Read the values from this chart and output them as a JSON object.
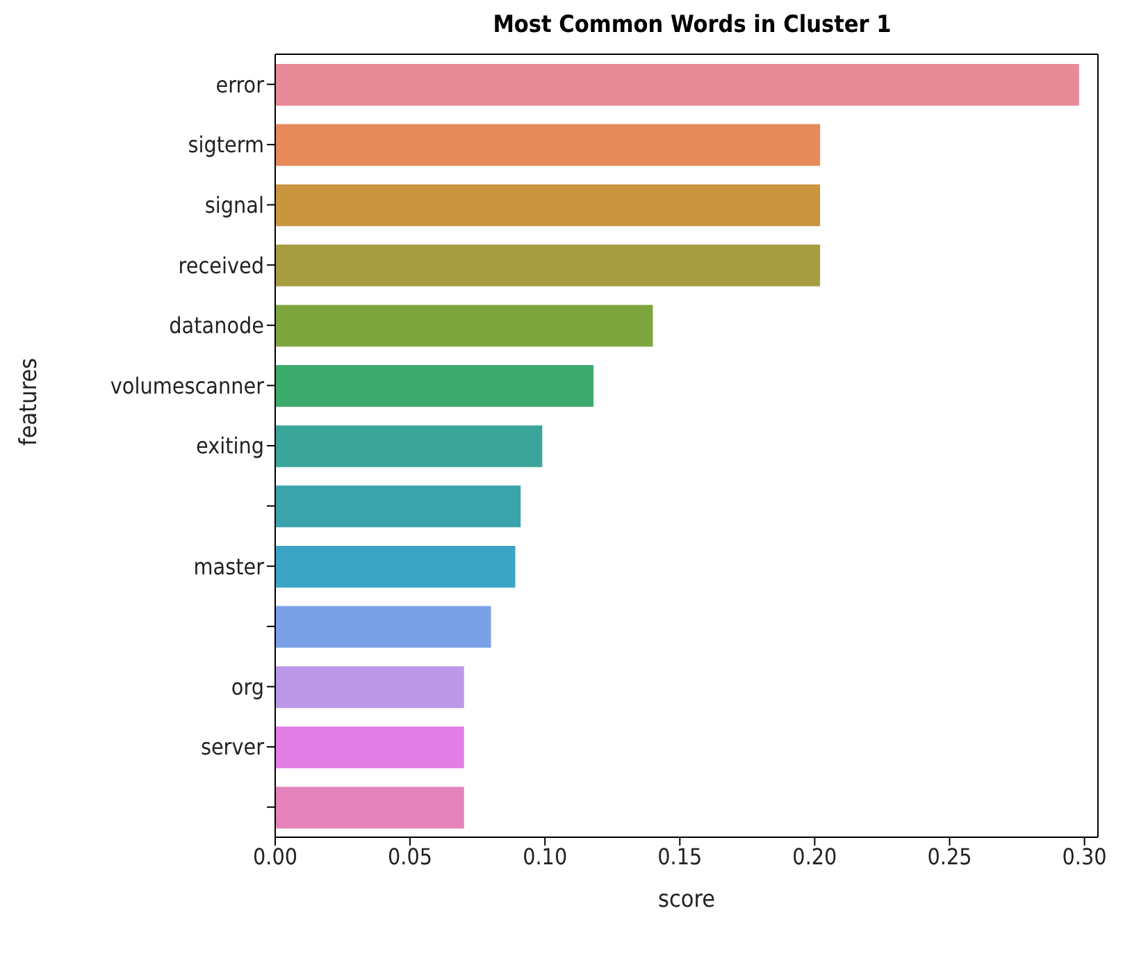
{
  "chart_data": {
    "type": "bar",
    "orientation": "horizontal",
    "title": "Most Common Words in Cluster 1",
    "xlabel": "score",
    "ylabel": "features",
    "categories": [
      "error",
      "sigterm",
      "signal",
      "received",
      "datanode",
      "volumescanner",
      "exiting",
      null,
      "master",
      null,
      "org",
      "server",
      null
    ],
    "values": [
      0.298,
      0.202,
      0.202,
      0.202,
      0.14,
      0.118,
      0.099,
      0.091,
      0.089,
      0.08,
      0.07,
      0.07,
      0.07
    ],
    "colors": [
      "#e88a98",
      "#e68a5a",
      "#c9963f",
      "#a59d40",
      "#7fa53f",
      "#3daa6d",
      "#3ba59a",
      "#3aa3ac",
      "#3ca5c6",
      "#7aa0e8",
      "#bc98e8",
      "#e37ee6",
      "#e584ba"
    ],
    "xlim": [
      0,
      0.305
    ],
    "xticks": [
      {
        "value": 0,
        "label": "0.00"
      },
      {
        "value": 0.05,
        "label": "0.05"
      },
      {
        "value": 0.1,
        "label": "0.10"
      },
      {
        "value": 0.15,
        "label": "0.15"
      },
      {
        "value": 0.2,
        "label": "0.20"
      },
      {
        "value": 0.25,
        "label": "0.25"
      },
      {
        "value": 0.3,
        "label": "0.30"
      }
    ],
    "grid": false,
    "legend": false
  }
}
